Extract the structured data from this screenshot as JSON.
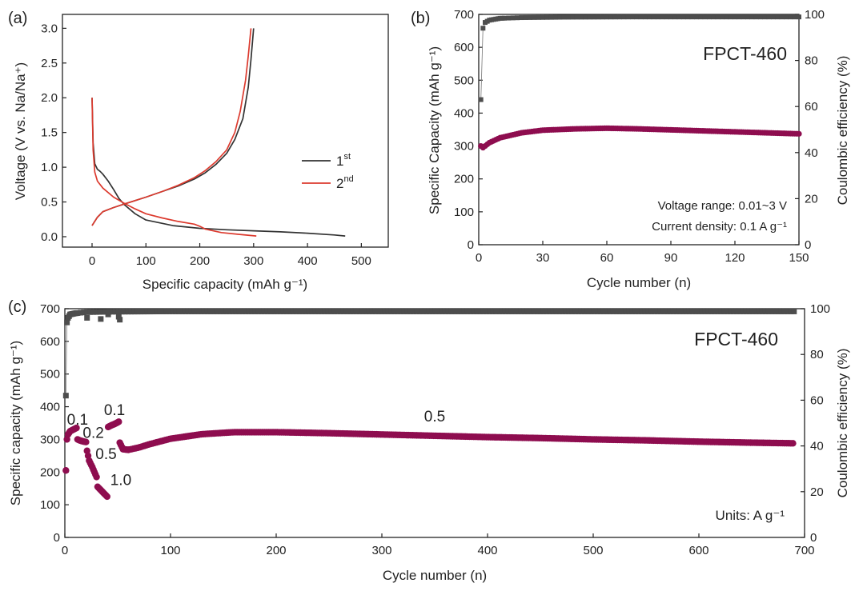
{
  "chart_data": [
    {
      "panel": "(a)",
      "type": "line",
      "xlabel": "Specific capacity (mAh g⁻¹)",
      "ylabel": "Voltage (V vs. Na/Na⁺)",
      "xlim": [
        -55,
        550
      ],
      "ylim": [
        -0.15,
        3.2
      ],
      "xticks": [
        "0",
        "100",
        "200",
        "300",
        "400",
        "500"
      ],
      "yticks": [
        "0.0",
        "0.5",
        "1.0",
        "1.5",
        "2.0",
        "2.5",
        "3.0"
      ],
      "legend": {
        "position": "right-middle",
        "entries": [
          "1st",
          "2nd"
        ],
        "sup1_base": "1",
        "sup1": "st",
        "sup2_base": "2",
        "sup2": "nd"
      },
      "colors": {
        "first": "#333333",
        "second": "#dc3a2e"
      },
      "series": [
        {
          "name": "1st discharge",
          "color_key": "first",
          "x": [
            0,
            2,
            5,
            10,
            15,
            20,
            30,
            40,
            50,
            60,
            80,
            100,
            150,
            200,
            250,
            300,
            350,
            400,
            450,
            470
          ],
          "y": [
            2.0,
            1.35,
            1.05,
            0.97,
            0.94,
            0.9,
            0.8,
            0.68,
            0.55,
            0.46,
            0.33,
            0.24,
            0.16,
            0.12,
            0.1,
            0.085,
            0.07,
            0.05,
            0.025,
            0.01
          ]
        },
        {
          "name": "1st charge",
          "color_key": "first",
          "x": [
            0,
            10,
            20,
            40,
            60,
            80,
            100,
            130,
            160,
            190,
            210,
            230,
            250,
            265,
            280,
            290,
            295,
            300
          ],
          "y": [
            0.16,
            0.28,
            0.36,
            0.42,
            0.47,
            0.52,
            0.57,
            0.65,
            0.73,
            0.83,
            0.92,
            1.04,
            1.2,
            1.4,
            1.7,
            2.15,
            2.55,
            3.0
          ]
        },
        {
          "name": "2nd discharge",
          "color_key": "second",
          "x": [
            0,
            2,
            5,
            10,
            20,
            40,
            60,
            80,
            100,
            130,
            160,
            190,
            200,
            210,
            240,
            270,
            305
          ],
          "y": [
            2.0,
            1.25,
            0.93,
            0.8,
            0.7,
            0.57,
            0.48,
            0.4,
            0.33,
            0.27,
            0.22,
            0.18,
            0.15,
            0.11,
            0.06,
            0.035,
            0.01
          ]
        },
        {
          "name": "2nd charge",
          "color_key": "second",
          "x": [
            0,
            10,
            20,
            40,
            60,
            80,
            100,
            130,
            160,
            190,
            210,
            230,
            250,
            265,
            275,
            285,
            290,
            295
          ],
          "y": [
            0.16,
            0.28,
            0.36,
            0.42,
            0.47,
            0.52,
            0.57,
            0.65,
            0.74,
            0.85,
            0.95,
            1.08,
            1.25,
            1.5,
            1.8,
            2.25,
            2.6,
            3.0
          ]
        }
      ]
    },
    {
      "panel": "(b)",
      "type": "scatter",
      "xlabel": "Cycle number (n)",
      "ylabel_left": "Specific Capacity (mAh g⁻¹)",
      "ylabel_right": "Coulombic efficiency (%)",
      "xlim": [
        0,
        150
      ],
      "ylim_left": [
        0,
        700
      ],
      "ylim_right": [
        0,
        100
      ],
      "xticks": [
        "0",
        "30",
        "60",
        "90",
        "120",
        "150"
      ],
      "yticks_left": [
        "0",
        "100",
        "200",
        "300",
        "400",
        "500",
        "600",
        "700"
      ],
      "yticks_right": [
        "0",
        "20",
        "40",
        "60",
        "80",
        "100"
      ],
      "label": "FPCT-460",
      "notes": [
        "Voltage range: 0.01~3 V",
        "Current density: 0.1 A g⁻¹"
      ],
      "colors": {
        "capacity": "#8e0d4f",
        "ce": "#4d4d4d"
      },
      "capacity_keypoints": {
        "x": [
          1,
          2,
          5,
          10,
          20,
          30,
          45,
          60,
          75,
          90,
          105,
          120,
          135,
          150
        ],
        "y": [
          300,
          295,
          310,
          325,
          340,
          348,
          352,
          354,
          352,
          349,
          346,
          343,
          340,
          337
        ]
      },
      "ce_keypoints": {
        "x": [
          1,
          2,
          3,
          5,
          10,
          20,
          40,
          70,
          100,
          130,
          150
        ],
        "y": [
          63,
          94,
          96.5,
          97.5,
          98.3,
          98.6,
          98.8,
          98.9,
          98.9,
          98.9,
          98.9
        ]
      }
    },
    {
      "panel": "(c)",
      "type": "scatter",
      "xlabel": "Cycle number (n)",
      "ylabel_left": "Specific capacity (mAh g⁻¹)",
      "ylabel_right": "Coulombic efficiency (%)",
      "xlim": [
        0,
        700
      ],
      "ylim_left": [
        0,
        700
      ],
      "ylim_right": [
        0,
        100
      ],
      "xticks": [
        "0",
        "100",
        "200",
        "300",
        "400",
        "500",
        "600",
        "700"
      ],
      "yticks_left": [
        "0",
        "100",
        "200",
        "300",
        "400",
        "500",
        "600",
        "700"
      ],
      "yticks_right": [
        "0",
        "20",
        "40",
        "60",
        "80",
        "100"
      ],
      "label": "FPCT-460",
      "units_note": "Units: A g⁻¹",
      "rate_labels": [
        {
          "text": "0.1",
          "x": 12,
          "y": 345
        },
        {
          "text": "0.2",
          "x": 27,
          "y": 305
        },
        {
          "text": "0.5",
          "x": 39,
          "y": 240
        },
        {
          "text": "1.0",
          "x": 53,
          "y": 160
        },
        {
          "text": "0.1",
          "x": 47,
          "y": 375
        },
        {
          "text": "0.5",
          "x": 350,
          "y": 355
        }
      ],
      "colors": {
        "capacity": "#8e0d4f",
        "ce": "#4d4d4d"
      },
      "capacity_keypoints": {
        "x": [
          1,
          2,
          3,
          5,
          8,
          11,
          12,
          14,
          17,
          20,
          21,
          23,
          26,
          28,
          30,
          31,
          34,
          37,
          40,
          41,
          44,
          47,
          50,
          51,
          52,
          55,
          60,
          70,
          80,
          100,
          130,
          160,
          200,
          250,
          300,
          350,
          400,
          450,
          500,
          550,
          600,
          650,
          690
        ],
        "y": [
          205,
          300,
          315,
          325,
          330,
          335,
          300,
          297,
          294,
          292,
          265,
          235,
          215,
          200,
          185,
          155,
          145,
          135,
          125,
          338,
          343,
          347,
          352,
          354,
          290,
          270,
          268,
          275,
          285,
          302,
          316,
          322,
          322,
          319,
          315,
          311,
          307,
          304,
          300,
          297,
          293,
          290,
          288
        ]
      },
      "ce_keypoints": {
        "x": [
          1,
          2,
          3,
          5,
          10,
          20,
          50,
          100,
          200,
          400,
          600,
          690
        ],
        "y": [
          62,
          94,
          96,
          97.5,
          98,
          98.5,
          98.7,
          98.8,
          98.8,
          98.8,
          98.8,
          98.8
        ]
      },
      "ce_outliers": {
        "x": [
          21,
          34,
          41,
          51,
          52
        ],
        "y": [
          96,
          95.5,
          97.5,
          96.5,
          95.2
        ]
      }
    }
  ]
}
